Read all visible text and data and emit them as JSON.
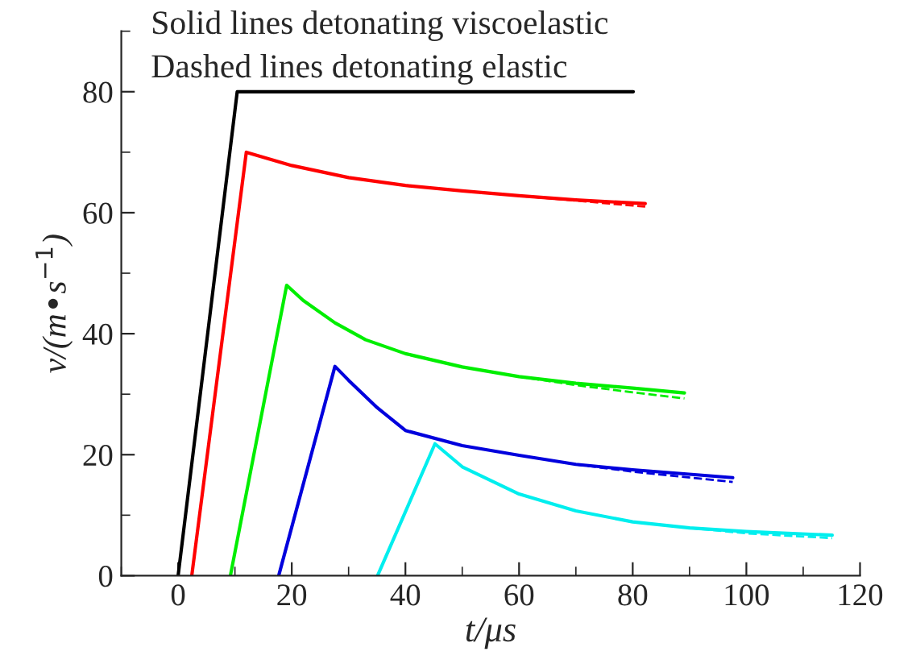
{
  "chart_data": {
    "type": "line",
    "xlabel": "t/μs",
    "ylabel": "v/(m•s$^{−1}$)",
    "annotations": [
      "Solid lines detonating viscoelastic",
      "Dashed lines detonating elastic"
    ],
    "xlim": [
      -10,
      120
    ],
    "xticks": [
      0,
      20,
      40,
      60,
      80,
      100,
      120
    ],
    "ylim": [
      0,
      90
    ],
    "yticks": [
      0,
      20,
      40,
      60,
      80
    ],
    "grid": false,
    "legend": false,
    "marker": "none",
    "series": [
      {
        "color": "#000000",
        "line_style": "solid",
        "x": [
          0,
          10.4,
          80.1
        ],
        "values": [
          0,
          80,
          80
        ]
      },
      {
        "color": "#ff0000",
        "line_style": "solid",
        "x": [
          2.4,
          12,
          20,
          30,
          40,
          50,
          60,
          70,
          82.2
        ],
        "values": [
          0,
          70,
          67.8,
          65.8,
          64.5,
          63.6,
          62.8,
          62.1,
          61.5
        ]
      },
      {
        "color": "#ff0000",
        "line_style": "dashed",
        "x": [
          60,
          70,
          82.2
        ],
        "values": [
          62.8,
          62.0,
          61.0
        ]
      },
      {
        "color": "#00ee00",
        "line_style": "solid",
        "x": [
          9.2,
          19.1,
          22,
          27.6,
          33,
          40,
          50,
          60,
          70,
          80,
          89.1
        ],
        "values": [
          0,
          48,
          45.5,
          41.8,
          39,
          36.7,
          34.5,
          32.9,
          31.8,
          31.0,
          30.2
        ]
      },
      {
        "color": "#00ee00",
        "line_style": "dashed",
        "x": [
          60,
          70,
          80,
          89.1
        ],
        "values": [
          32.9,
          31.5,
          30.3,
          29.3
        ]
      },
      {
        "color": "#0000dd",
        "line_style": "solid",
        "x": [
          17.7,
          27.6,
          30,
          35,
          40,
          50,
          60,
          70,
          80,
          97.6
        ],
        "values": [
          0,
          34.6,
          32.3,
          27.8,
          24.0,
          21.5,
          19.9,
          18.4,
          17.5,
          16.2
        ]
      },
      {
        "color": "#0000dd",
        "line_style": "dashed",
        "x": [
          70,
          80,
          97.6
        ],
        "values": [
          18.4,
          17.2,
          15.5
        ]
      },
      {
        "color": "#00eeee",
        "line_style": "solid",
        "x": [
          35.1,
          45.2,
          50,
          60,
          70,
          80,
          90,
          100,
          115.1
        ],
        "values": [
          0,
          21.8,
          18.0,
          13.5,
          10.7,
          8.9,
          7.9,
          7.3,
          6.7
        ]
      },
      {
        "color": "#00eeee",
        "line_style": "dashed",
        "x": [
          90,
          100,
          115.1
        ],
        "values": [
          7.9,
          7.0,
          6.2
        ]
      }
    ]
  }
}
